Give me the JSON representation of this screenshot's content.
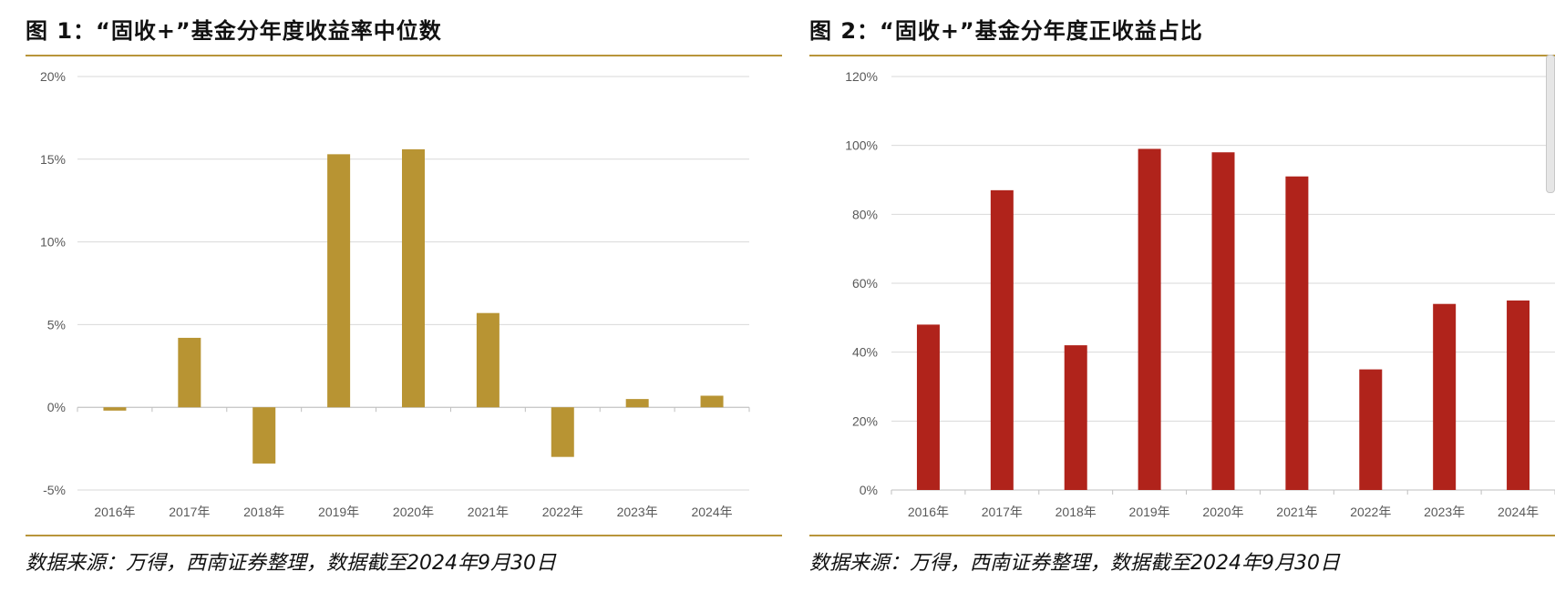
{
  "source_note": "数据来源：万得，西南证券整理，数据截至2024年9月30日",
  "chart_data": [
    {
      "type": "bar",
      "title": "图 1：“固收+”基金分年度收益率中位数",
      "categories": [
        "2016年",
        "2017年",
        "2018年",
        "2019年",
        "2020年",
        "2021年",
        "2022年",
        "2023年",
        "2024年"
      ],
      "values": [
        -0.2,
        4.2,
        -3.4,
        15.3,
        15.6,
        5.7,
        -3.0,
        0.5,
        0.7
      ],
      "ylim": [
        -5,
        20
      ],
      "yticks": [
        -5,
        0,
        5,
        10,
        15,
        20
      ],
      "ytick_labels": [
        "-5%",
        "0%",
        "5%",
        "10%",
        "15%",
        "20%"
      ],
      "xlabel": "",
      "ylabel": "",
      "grid": true,
      "color": "#b89433"
    },
    {
      "type": "bar",
      "title": "图 2：“固收+”基金分年度正收益占比",
      "categories": [
        "2016年",
        "2017年",
        "2018年",
        "2019年",
        "2020年",
        "2021年",
        "2022年",
        "2023年",
        "2024年"
      ],
      "values": [
        48,
        87,
        42,
        99,
        98,
        91,
        35,
        54,
        55
      ],
      "ylim": [
        0,
        120
      ],
      "yticks": [
        0,
        20,
        40,
        60,
        80,
        100,
        120
      ],
      "ytick_labels": [
        "0%",
        "20%",
        "40%",
        "60%",
        "80%",
        "100%",
        "120%"
      ],
      "xlabel": "",
      "ylabel": "",
      "grid": true,
      "color": "#b0231b"
    }
  ]
}
